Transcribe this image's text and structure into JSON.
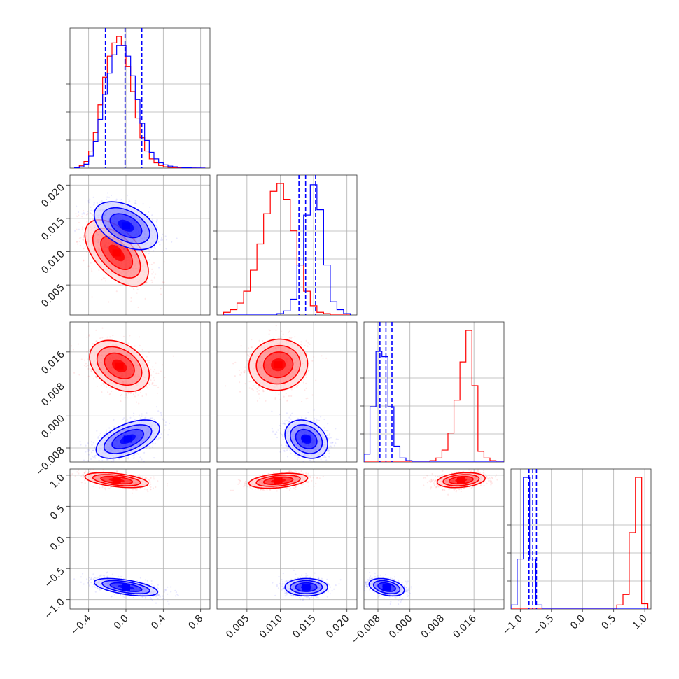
{
  "colors": {
    "series_a": "#ff0000",
    "series_b": "#0000ff",
    "grid": "#b0b0b0",
    "frame": "#333333"
  },
  "chart_data": {
    "type": "corner",
    "grid": true,
    "series": [
      {
        "name": "",
        "color": "#ff0000"
      },
      {
        "name": "",
        "color": "#0000ff"
      }
    ],
    "parameters": [
      {
        "range": [
          -0.6,
          0.9
        ],
        "ticks": [
          -0.4,
          0.0,
          0.4,
          0.8
        ],
        "tick_labels": [
          "−0.4",
          "0.0",
          "0.4",
          "0.8"
        ],
        "hist": {
          "bins": [
            -0.55,
            -0.5,
            -0.45,
            -0.4,
            -0.35,
            -0.3,
            -0.25,
            -0.2,
            -0.15,
            -0.1,
            -0.05,
            0.0,
            0.05,
            0.1,
            0.15,
            0.2,
            0.25,
            0.3,
            0.35,
            0.4,
            0.45,
            0.5,
            0.55,
            0.6,
            0.65,
            0.7,
            0.75,
            0.8,
            0.85
          ],
          "red": [
            0.005,
            0.02,
            0.05,
            0.13,
            0.27,
            0.48,
            0.69,
            0.85,
            0.95,
            1.0,
            0.93,
            0.77,
            0.58,
            0.38,
            0.23,
            0.13,
            0.07,
            0.04,
            0.02,
            0.01,
            0.006,
            0.004,
            0.003,
            0.002,
            0.001,
            0.001,
            0.0,
            0.0
          ],
          "blue": [
            0.003,
            0.01,
            0.03,
            0.09,
            0.2,
            0.37,
            0.56,
            0.72,
            0.86,
            0.93,
            0.93,
            0.85,
            0.7,
            0.52,
            0.34,
            0.21,
            0.12,
            0.07,
            0.04,
            0.025,
            0.015,
            0.01,
            0.006,
            0.003,
            0.002,
            0.001,
            0.001,
            0.0
          ]
        },
        "quantiles": [
          -0.22,
          -0.01,
          0.17
        ]
      },
      {
        "range": [
          0.0005,
          0.0215
        ],
        "ticks": [
          0.005,
          0.01,
          0.015,
          0.02
        ],
        "tick_labels": [
          "0.005",
          "0.010",
          "0.015",
          "0.020"
        ],
        "hist": {
          "bins": [
            0.0015,
            0.0025,
            0.0035,
            0.0045,
            0.0055,
            0.0065,
            0.0075,
            0.0085,
            0.0095,
            0.0105,
            0.0115,
            0.0125,
            0.0135,
            0.0145,
            0.0155,
            0.0165,
            0.0175,
            0.0185,
            0.0195,
            0.0205
          ],
          "red": [
            0.02,
            0.04,
            0.09,
            0.18,
            0.34,
            0.54,
            0.77,
            0.94,
            1.0,
            0.88,
            0.64,
            0.38,
            0.18,
            0.07,
            0.02,
            0.01,
            0.0,
            0.0,
            0.0
          ],
          "blue": [
            0.0,
            0.0,
            0.0,
            0.0,
            0.0,
            0.0,
            0.0,
            0.0,
            0.01,
            0.03,
            0.12,
            0.38,
            0.76,
            0.99,
            0.8,
            0.38,
            0.1,
            0.04,
            0.01
          ]
        },
        "quantiles": [
          0.0128,
          0.0138,
          0.0153
        ]
      },
      {
        "range": [
          -0.0115,
          0.0235
        ],
        "ticks": [
          -0.008,
          0.0,
          0.008,
          0.016
        ],
        "tick_labels": [
          "−0.008",
          "0.000",
          "0.008",
          "0.016"
        ],
        "hist": {
          "bins": [
            -0.0115,
            -0.01,
            -0.0085,
            -0.007,
            -0.0055,
            -0.004,
            -0.0025,
            -0.001,
            0.0005,
            0.002,
            0.0035,
            0.005,
            0.0065,
            0.008,
            0.0095,
            0.011,
            0.0125,
            0.014,
            0.0155,
            0.017,
            0.0185,
            0.02,
            0.0215,
            0.0235
          ],
          "red": [
            0.0,
            0.0,
            0.0,
            0.0,
            0.0,
            0.0,
            0.0,
            0.0,
            0.0,
            0.0,
            0.0,
            0.01,
            0.03,
            0.09,
            0.22,
            0.47,
            0.76,
            1.0,
            0.58,
            0.08,
            0.03,
            0.01,
            0.0
          ],
          "blue": [
            0.06,
            0.42,
            0.84,
            0.8,
            0.42,
            0.12,
            0.03,
            0.01,
            0.0,
            0.0,
            0.0,
            0.0,
            0.0,
            0.0,
            0.0,
            0.0,
            0.0,
            0.0,
            0.0,
            0.0,
            0.0,
            0.0,
            0.0
          ]
        },
        "quantiles": [
          -0.0075,
          -0.006,
          -0.0045
        ]
      },
      {
        "range": [
          -1.15,
          1.1
        ],
        "ticks": [
          -1.0,
          -0.5,
          0.0,
          0.5,
          1.0
        ],
        "tick_labels": [
          "−1.0",
          "−0.5",
          "0.0",
          "0.5",
          "1.0"
        ],
        "hist": {
          "bins": [
            -1.15,
            -1.05,
            -0.95,
            -0.85,
            -0.75,
            -0.65,
            -0.55,
            -0.45,
            -0.35,
            -0.25,
            -0.15,
            -0.05,
            0.05,
            0.15,
            0.25,
            0.35,
            0.45,
            0.55,
            0.65,
            0.75,
            0.85,
            0.95,
            1.05
          ],
          "red": [
            0.0,
            0.0,
            0.0,
            0.0,
            0.0,
            0.0,
            0.0,
            0.0,
            0.0,
            0.0,
            0.0,
            0.0,
            0.0,
            0.0,
            0.0,
            0.0,
            0.0,
            0.03,
            0.11,
            0.58,
            1.0,
            0.04
          ],
          "blue": [
            0.03,
            0.38,
            1.0,
            0.38,
            0.03,
            0.0,
            0.0,
            0.0,
            0.0,
            0.0,
            0.0,
            0.0,
            0.0,
            0.0,
            0.0,
            0.0,
            0.0,
            0.0,
            0.0,
            0.0,
            0.0,
            0.0
          ]
        },
        "quantiles": [
          -0.86,
          -0.8,
          -0.74
        ]
      }
    ],
    "scatter": [
      {
        "row": 1,
        "col": 0,
        "y_tick_labels": [
          "0.005",
          "0.010",
          "0.015",
          "0.020"
        ],
        "red": {
          "center": [
            -0.1,
            0.0098
          ],
          "sd": [
            0.17,
            0.0025
          ],
          "rho": -0.55
        },
        "blue": {
          "center": [
            0.0,
            0.0139
          ],
          "sd": [
            0.17,
            0.0018
          ],
          "rho": -0.45
        }
      },
      {
        "row": 2,
        "col": 0,
        "y_tick_labels": [
          "−0.008",
          "0.000",
          "0.008",
          "0.016"
        ],
        "red": {
          "center": [
            -0.07,
            0.0125
          ],
          "sd": [
            0.16,
            0.0032
          ],
          "rho": -0.35
        },
        "blue": {
          "center": [
            0.02,
            -0.0058
          ],
          "sd": [
            0.17,
            0.0024
          ],
          "rho": 0.55
        }
      },
      {
        "row": 2,
        "col": 1,
        "red": {
          "center": [
            0.0097,
            0.0128
          ],
          "sd": [
            0.0022,
            0.0032
          ],
          "rho": 0.05
        },
        "blue": {
          "center": [
            0.0139,
            -0.0058
          ],
          "sd": [
            0.0016,
            0.0024
          ],
          "rho": -0.25
        }
      },
      {
        "row": 3,
        "col": 0,
        "y_tick_labels": [
          "−1.0",
          "−0.5",
          "0.0",
          "0.5",
          "1.0"
        ],
        "red": {
          "center": [
            -0.1,
            0.92
          ],
          "sd": [
            0.17,
            0.06
          ],
          "rho": -0.45
        },
        "blue": {
          "center": [
            0.0,
            -0.8
          ],
          "sd": [
            0.17,
            0.07
          ],
          "rho": -0.55
        }
      },
      {
        "row": 3,
        "col": 1,
        "red": {
          "center": [
            0.0097,
            0.91
          ],
          "sd": [
            0.0022,
            0.06
          ],
          "rho": 0.35
        },
        "blue": {
          "center": [
            0.0139,
            -0.8
          ],
          "sd": [
            0.0016,
            0.07
          ],
          "rho": 0.0
        }
      },
      {
        "row": 3,
        "col": 2,
        "red": {
          "center": [
            0.0128,
            0.92
          ],
          "sd": [
            0.003,
            0.06
          ],
          "rho": 0.25
        },
        "blue": {
          "center": [
            -0.0058,
            -0.8
          ],
          "sd": [
            0.0022,
            0.07
          ],
          "rho": -0.35
        }
      }
    ]
  }
}
